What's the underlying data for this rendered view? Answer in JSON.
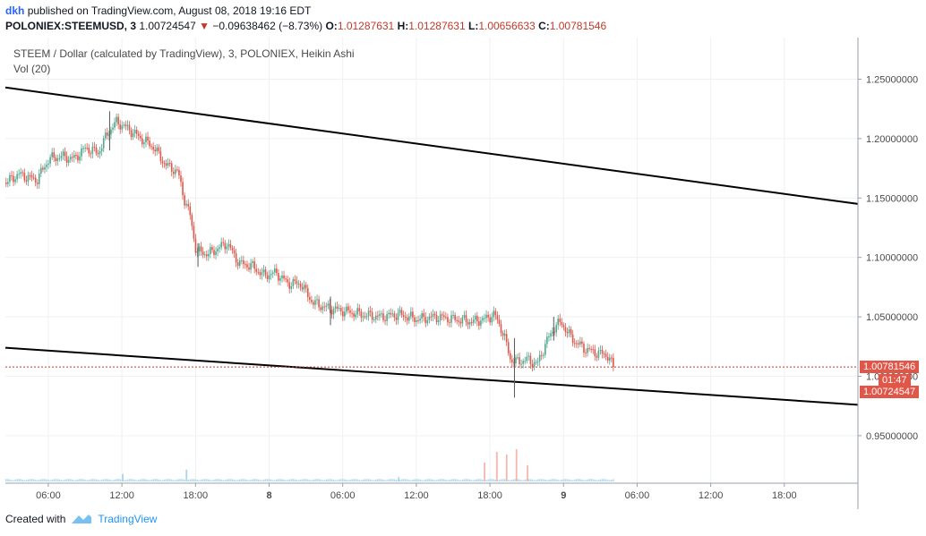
{
  "header": {
    "user": "dkh",
    "published": "published on TradingView.com, August 08, 2018 19:16 EDT",
    "symbol": "POLONIEX:STEEMUSD, 3",
    "last": "1.00724547",
    "change_arrow": "▼",
    "change": "−0.09638462 (−8.73%)",
    "o_label": "O:",
    "o_value": "1.01287631",
    "h_label": "H:",
    "h_value": "1.01287631",
    "l_label": "L:",
    "l_value": "1.00656633",
    "c_label": "C:",
    "c_value": "1.00781546"
  },
  "legend": {
    "title": "STEEM / Dollar (calculated by TradingView), 3, POLONIEX, Heikin Ashi",
    "volume": "Vol (20)"
  },
  "footer": {
    "created": "Created with",
    "brand": "TradingView"
  },
  "colors": {
    "up": "#53a58e",
    "down": "#e0574a",
    "grid": "#eef0f3",
    "trend": "#000000",
    "price_line": "#c0392b",
    "vol": "#a9d5ef"
  },
  "chart_data": {
    "type": "candlestick",
    "title": "STEEM / Dollar (calculated by TradingView), 3, POLONIEX, Heikin Ashi",
    "x_ticks": [
      "06:00",
      "12:00",
      "18:00",
      "8",
      "06:00",
      "12:00",
      "18:00",
      "9",
      "06:00",
      "12:00",
      "18:00"
    ],
    "y_ticks": [
      "1.25000000",
      "1.20000000",
      "1.15000000",
      "1.10000000",
      "1.05000000",
      "1.00000000",
      "0.95000000"
    ],
    "y_tick_values": [
      1.25,
      1.2,
      1.15,
      1.1,
      1.05,
      1.0,
      0.95
    ],
    "ylim": [
      0.91,
      1.285
    ],
    "x_range_hours": [
      2.5,
      72
    ],
    "last_price": "1.00781546",
    "last_price_value": 1.00781546,
    "countdown": "01:47",
    "close_price": "1.00724547",
    "close_price_value": 1.00724547,
    "price_path": [
      [
        2.5,
        1.163
      ],
      [
        3.5,
        1.17
      ],
      [
        5,
        1.165
      ],
      [
        6,
        1.183
      ],
      [
        7,
        1.185
      ],
      [
        8,
        1.183
      ],
      [
        9,
        1.192
      ],
      [
        10,
        1.188
      ],
      [
        10.8,
        1.205
      ],
      [
        11.5,
        1.214
      ],
      [
        12.5,
        1.208
      ],
      [
        13.5,
        1.2
      ],
      [
        14.5,
        1.193
      ],
      [
        15.5,
        1.178
      ],
      [
        16.5,
        1.172
      ],
      [
        17,
        1.15
      ],
      [
        17.5,
        1.135
      ],
      [
        18,
        1.105
      ],
      [
        19,
        1.103
      ],
      [
        20.5,
        1.112
      ],
      [
        21.5,
        1.095
      ],
      [
        22.5,
        1.093
      ],
      [
        23.5,
        1.085
      ],
      [
        24.5,
        1.087
      ],
      [
        25.5,
        1.078
      ],
      [
        26.5,
        1.078
      ],
      [
        27.5,
        1.062
      ],
      [
        28.5,
        1.058
      ],
      [
        30,
        1.055
      ],
      [
        31.5,
        1.052
      ],
      [
        33,
        1.05
      ],
      [
        34.5,
        1.052
      ],
      [
        36,
        1.048
      ],
      [
        37.5,
        1.05
      ],
      [
        39,
        1.048
      ],
      [
        40.5,
        1.046
      ],
      [
        41.5,
        1.048
      ],
      [
        42.3,
        1.052
      ],
      [
        42.8,
        1.042
      ],
      [
        43.2,
        1.03
      ],
      [
        43.6,
        1.015
      ],
      [
        44,
        1.012
      ],
      [
        45,
        1.014
      ],
      [
        45.8,
        1.01
      ],
      [
        46.5,
        1.028
      ],
      [
        47.3,
        1.043
      ],
      [
        47.8,
        1.045
      ],
      [
        48.3,
        1.036
      ],
      [
        49,
        1.028
      ],
      [
        49.7,
        1.023
      ],
      [
        50.5,
        1.02
      ],
      [
        51.5,
        1.018
      ],
      [
        52,
        1.008
      ]
    ],
    "spikes": [
      {
        "x": 11.0,
        "low": 1.19,
        "high": 1.223
      },
      {
        "x": 18.2,
        "low": 1.092,
        "high": 1.112
      },
      {
        "x": 29.0,
        "low": 1.043,
        "high": 1.067
      },
      {
        "x": 44.0,
        "low": 0.982,
        "high": 1.032
      },
      {
        "x": 47.2,
        "low": 1.03,
        "high": 1.05
      }
    ],
    "trendlines": [
      {
        "name": "upper",
        "p1": [
          2.5,
          1.243
        ],
        "p2": [
          72,
          1.145
        ]
      },
      {
        "name": "lower",
        "p1": [
          2.5,
          1.024
        ],
        "p2": [
          72,
          0.976
        ]
      }
    ],
    "volume": {
      "baseline_level": 0.003,
      "max_bars": [
        {
          "x": 17.2,
          "v": 0.22
        },
        {
          "x": 34.5,
          "v": 0.08
        },
        {
          "x": 41.5,
          "v": 0.35
        },
        {
          "x": 42.5,
          "v": 0.55
        },
        {
          "x": 43.3,
          "v": 0.5
        },
        {
          "x": 44.1,
          "v": 0.6
        },
        {
          "x": 45.0,
          "v": 0.3
        },
        {
          "x": 12.0,
          "v": 0.14
        }
      ]
    }
  }
}
